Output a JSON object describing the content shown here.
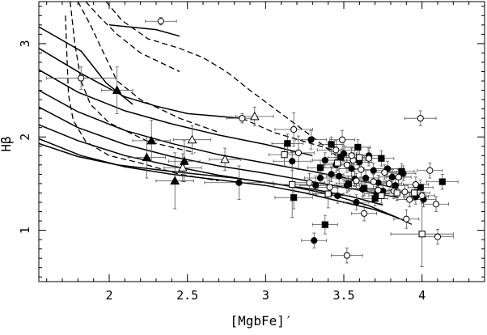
{
  "chart_data": {
    "type": "scatter",
    "title": "",
    "xlabel": "[MgbFe]′",
    "ylabel": "Hβ",
    "xlim": [
      1.55,
      4.4
    ],
    "ylim": [
      0.45,
      3.45
    ],
    "x_ticks": [
      2,
      2.5,
      3,
      3.5,
      4
    ],
    "x_tick_labels": [
      "2",
      "2.5",
      "3",
      "3.5",
      "4"
    ],
    "y_ticks": [
      1,
      2,
      3
    ],
    "y_tick_labels": [
      "1",
      "2",
      "3"
    ],
    "grid": false,
    "legend": "none",
    "model_grid_solid": [
      [
        [
          1.55,
          3.18
        ],
        [
          1.82,
          2.92
        ],
        [
          1.98,
          2.58
        ],
        [
          2.15,
          2.35
        ]
      ],
      [
        [
          1.55,
          2.95
        ],
        [
          1.82,
          2.68
        ],
        [
          2.1,
          2.43
        ],
        [
          2.3,
          2.33
        ],
        [
          2.5,
          2.25
        ],
        [
          2.85,
          2.2
        ]
      ],
      [
        [
          1.55,
          2.72
        ],
        [
          1.8,
          2.48
        ],
        [
          2.1,
          2.28
        ],
        [
          2.4,
          2.14
        ],
        [
          2.7,
          2.02
        ],
        [
          3.0,
          1.92
        ],
        [
          3.3,
          1.8
        ]
      ],
      [
        [
          1.55,
          2.5
        ],
        [
          1.8,
          2.27
        ],
        [
          2.1,
          2.07
        ],
        [
          2.4,
          1.93
        ],
        [
          2.7,
          1.81
        ],
        [
          3.0,
          1.72
        ],
        [
          3.3,
          1.63
        ],
        [
          3.6,
          1.53
        ],
        [
          3.85,
          1.45
        ]
      ],
      [
        [
          1.55,
          2.32
        ],
        [
          1.8,
          2.1
        ],
        [
          2.1,
          1.92
        ],
        [
          2.4,
          1.79
        ],
        [
          2.7,
          1.69
        ],
        [
          3.0,
          1.61
        ],
        [
          3.3,
          1.52
        ],
        [
          3.6,
          1.43
        ],
        [
          3.85,
          1.35
        ]
      ],
      [
        [
          1.55,
          2.13
        ],
        [
          1.8,
          1.96
        ],
        [
          2.1,
          1.8
        ],
        [
          2.4,
          1.69
        ],
        [
          2.7,
          1.59
        ],
        [
          3.0,
          1.51
        ],
        [
          3.3,
          1.44
        ],
        [
          3.55,
          1.36
        ],
        [
          3.75,
          1.27
        ]
      ],
      [
        [
          1.55,
          1.98
        ],
        [
          1.82,
          1.8
        ],
        [
          2.1,
          1.68
        ],
        [
          2.4,
          1.6
        ],
        [
          2.7,
          1.54
        ],
        [
          3.0,
          1.48
        ],
        [
          3.25,
          1.4
        ],
        [
          3.5,
          1.3
        ],
        [
          3.7,
          1.22
        ],
        [
          3.85,
          1.13
        ]
      ],
      [
        [
          1.55,
          1.93
        ],
        [
          1.8,
          1.79
        ],
        [
          2.05,
          1.7
        ],
        [
          2.4,
          1.63
        ],
        [
          2.8,
          1.56
        ],
        [
          3.1,
          1.49
        ],
        [
          3.4,
          1.39
        ],
        [
          3.65,
          1.27
        ],
        [
          3.85,
          1.13
        ]
      ],
      [
        [
          2.0,
          3.2
        ],
        [
          2.3,
          3.15
        ],
        [
          2.45,
          3.08
        ]
      ]
    ],
    "model_grid_dashed": [
      [
        [
          1.85,
          3.45
        ],
        [
          1.93,
          3.3
        ],
        [
          2.05,
          3.1
        ],
        [
          2.2,
          2.9
        ],
        [
          2.45,
          2.7
        ]
      ],
      [
        [
          1.8,
          3.45
        ],
        [
          1.88,
          3.2
        ],
        [
          1.95,
          2.95
        ],
        [
          2.05,
          2.6
        ],
        [
          2.2,
          2.4
        ],
        [
          2.45,
          2.2
        ],
        [
          2.7,
          2.05
        ]
      ],
      [
        [
          1.75,
          3.45
        ],
        [
          1.78,
          3.0
        ],
        [
          1.82,
          2.6
        ],
        [
          1.88,
          2.35
        ],
        [
          2.0,
          2.15
        ],
        [
          2.25,
          1.95
        ],
        [
          2.55,
          1.83
        ]
      ],
      [
        [
          1.72,
          3.3
        ],
        [
          1.73,
          2.85
        ],
        [
          1.74,
          2.45
        ],
        [
          1.77,
          2.18
        ],
        [
          1.85,
          1.95
        ],
        [
          2.0,
          1.8
        ],
        [
          2.2,
          1.72
        ],
        [
          2.45,
          1.6
        ],
        [
          2.7,
          1.53
        ]
      ],
      [
        [
          1.98,
          3.45
        ],
        [
          2.08,
          3.25
        ],
        [
          2.25,
          3.05
        ],
        [
          2.45,
          2.95
        ],
        [
          2.6,
          2.85
        ],
        [
          2.75,
          2.7
        ],
        [
          2.9,
          2.5
        ],
        [
          3.1,
          2.25
        ],
        [
          3.3,
          2.0
        ],
        [
          3.45,
          1.8
        ]
      ],
      [
        [
          2.85,
          2.2
        ],
        [
          3.05,
          2.05
        ],
        [
          3.25,
          1.95
        ],
        [
          3.45,
          1.85
        ]
      ],
      [
        [
          3.85,
          1.13
        ],
        [
          3.95,
          1.05
        ]
      ]
    ],
    "series": [
      {
        "marker": "filled-circle",
        "points": [
          [
            2.83,
            1.51,
            0.22,
            0.18
          ],
          [
            3.17,
            1.74,
            0.12,
            0.1
          ],
          [
            3.29,
            1.97,
            0.1,
            0.1
          ],
          [
            3.32,
            1.48,
            0.1,
            0.1
          ],
          [
            3.35,
            1.56,
            0.1,
            0.08
          ],
          [
            3.38,
            1.75,
            0.08,
            0.08
          ],
          [
            3.42,
            1.6,
            0.08,
            0.08
          ],
          [
            3.45,
            1.7,
            0.08,
            0.08
          ],
          [
            3.47,
            1.58,
            0.08,
            0.08
          ],
          [
            3.5,
            1.82,
            0.08,
            0.08
          ],
          [
            3.52,
            1.48,
            0.08,
            0.08
          ],
          [
            3.55,
            1.66,
            0.08,
            0.08
          ],
          [
            3.57,
            1.55,
            0.08,
            0.08
          ],
          [
            3.6,
            1.73,
            0.08,
            0.08
          ],
          [
            3.62,
            1.44,
            0.08,
            0.08
          ],
          [
            3.64,
            1.56,
            0.08,
            0.08
          ],
          [
            3.66,
            1.8,
            0.08,
            0.08
          ],
          [
            3.69,
            1.64,
            0.08,
            0.08
          ],
          [
            3.72,
            1.51,
            0.08,
            0.08
          ],
          [
            3.75,
            1.42,
            0.08,
            0.08
          ],
          [
            3.78,
            1.66,
            0.08,
            0.08
          ],
          [
            3.81,
            1.57,
            0.08,
            0.08
          ],
          [
            3.83,
            1.48,
            0.08,
            0.08
          ],
          [
            3.88,
            1.61,
            0.08,
            0.08
          ],
          [
            3.96,
            1.36,
            0.08,
            0.08
          ],
          [
            4.01,
            1.33,
            0.08,
            0.08
          ],
          [
            3.46,
            1.37,
            0.08,
            0.08
          ],
          [
            3.58,
            1.3,
            0.08,
            0.08
          ],
          [
            3.31,
            0.89,
            0.08,
            0.08
          ],
          [
            3.71,
            1.39,
            0.08,
            0.08
          ]
        ]
      },
      {
        "marker": "filled-square",
        "points": [
          [
            3.14,
            1.93,
            0.1,
            0.1
          ],
          [
            3.18,
            1.35,
            0.12,
            0.12
          ],
          [
            3.38,
            1.06,
            0.08,
            0.1
          ],
          [
            3.48,
            1.78,
            0.08,
            0.08
          ],
          [
            3.59,
            1.89,
            0.08,
            0.08
          ],
          [
            3.63,
            1.45,
            0.08,
            0.08
          ],
          [
            3.7,
            1.34,
            0.08,
            0.08
          ],
          [
            3.74,
            1.77,
            0.08,
            0.08
          ],
          [
            3.87,
            1.63,
            0.08,
            0.08
          ],
          [
            3.99,
            1.46,
            0.08,
            0.08
          ],
          [
            4.13,
            1.52,
            0.1,
            0.08
          ],
          [
            3.35,
            1.67,
            0.08,
            0.08
          ],
          [
            3.53,
            1.5,
            0.08,
            0.08
          ],
          [
            3.42,
            1.92,
            0.08,
            0.08
          ]
        ]
      },
      {
        "marker": "open-circle",
        "points": [
          [
            2.33,
            3.24,
            0.1,
            0.04
          ],
          [
            1.82,
            2.63,
            0.22,
            0.12
          ],
          [
            2.85,
            2.2,
            0.1,
            0.05
          ],
          [
            3.18,
            2.08,
            0.12,
            0.18
          ],
          [
            3.21,
            1.83,
            0.1,
            0.18
          ],
          [
            3.28,
            1.51,
            0.1,
            0.1
          ],
          [
            3.45,
            1.86,
            0.12,
            0.1
          ],
          [
            3.49,
            1.97,
            0.08,
            0.1
          ],
          [
            3.52,
            1.7,
            0.08,
            0.08
          ],
          [
            3.56,
            1.75,
            0.08,
            0.08
          ],
          [
            3.58,
            1.53,
            0.08,
            0.08
          ],
          [
            3.61,
            1.65,
            0.08,
            0.08
          ],
          [
            3.63,
            1.18,
            0.08,
            0.08
          ],
          [
            3.66,
            1.77,
            0.08,
            0.08
          ],
          [
            3.69,
            1.52,
            0.08,
            0.08
          ],
          [
            3.72,
            1.43,
            0.08,
            0.08
          ],
          [
            3.76,
            1.62,
            0.08,
            0.08
          ],
          [
            3.79,
            1.5,
            0.08,
            0.08
          ],
          [
            3.82,
            1.42,
            0.08,
            0.08
          ],
          [
            3.85,
            1.57,
            0.08,
            0.08
          ],
          [
            3.89,
            1.41,
            0.08,
            0.08
          ],
          [
            3.92,
            1.33,
            0.08,
            0.08
          ],
          [
            3.96,
            1.49,
            0.08,
            0.08
          ],
          [
            4.05,
            1.64,
            0.08,
            0.08
          ],
          [
            4.09,
            1.28,
            0.08,
            0.08
          ],
          [
            3.99,
            2.2,
            0.1,
            0.08
          ],
          [
            4.1,
            0.93,
            0.1,
            0.08
          ],
          [
            3.52,
            0.73,
            0.1,
            0.08
          ],
          [
            3.9,
            1.12,
            0.08,
            0.1
          ],
          [
            4.0,
            1.37,
            0.08,
            0.08
          ],
          [
            3.41,
            1.46,
            0.08,
            0.08
          ],
          [
            3.55,
            1.8,
            0.08,
            0.08
          ]
        ]
      },
      {
        "marker": "open-square",
        "points": [
          [
            3.12,
            1.81,
            0.1,
            0.12
          ],
          [
            3.17,
            1.49,
            0.12,
            0.35
          ],
          [
            3.4,
            1.39,
            0.1,
            0.15
          ],
          [
            3.46,
            1.72,
            0.08,
            0.08
          ],
          [
            3.74,
            1.37,
            0.08,
            0.08
          ],
          [
            3.95,
            1.4,
            0.1,
            0.08
          ],
          [
            4.0,
            0.96,
            0.2,
            0.35
          ],
          [
            3.84,
            1.4,
            0.08,
            0.08
          ],
          [
            3.6,
            1.78,
            0.08,
            0.08
          ]
        ]
      },
      {
        "marker": "filled-triangle",
        "points": [
          [
            2.05,
            2.5,
            0.1,
            0.25
          ],
          [
            2.27,
            1.96,
            0.12,
            0.22
          ],
          [
            2.24,
            1.78,
            0.12,
            0.22
          ],
          [
            2.48,
            1.74,
            0.1,
            0.22
          ],
          [
            2.42,
            1.53,
            0.12,
            0.3
          ]
        ]
      },
      {
        "marker": "open-triangle",
        "points": [
          [
            2.93,
            2.22,
            0.12,
            0.1
          ],
          [
            2.53,
            1.97,
            0.12,
            0.15
          ],
          [
            2.74,
            1.76,
            0.1,
            0.12
          ],
          [
            2.47,
            1.67,
            0.12,
            0.15
          ]
        ]
      }
    ]
  }
}
